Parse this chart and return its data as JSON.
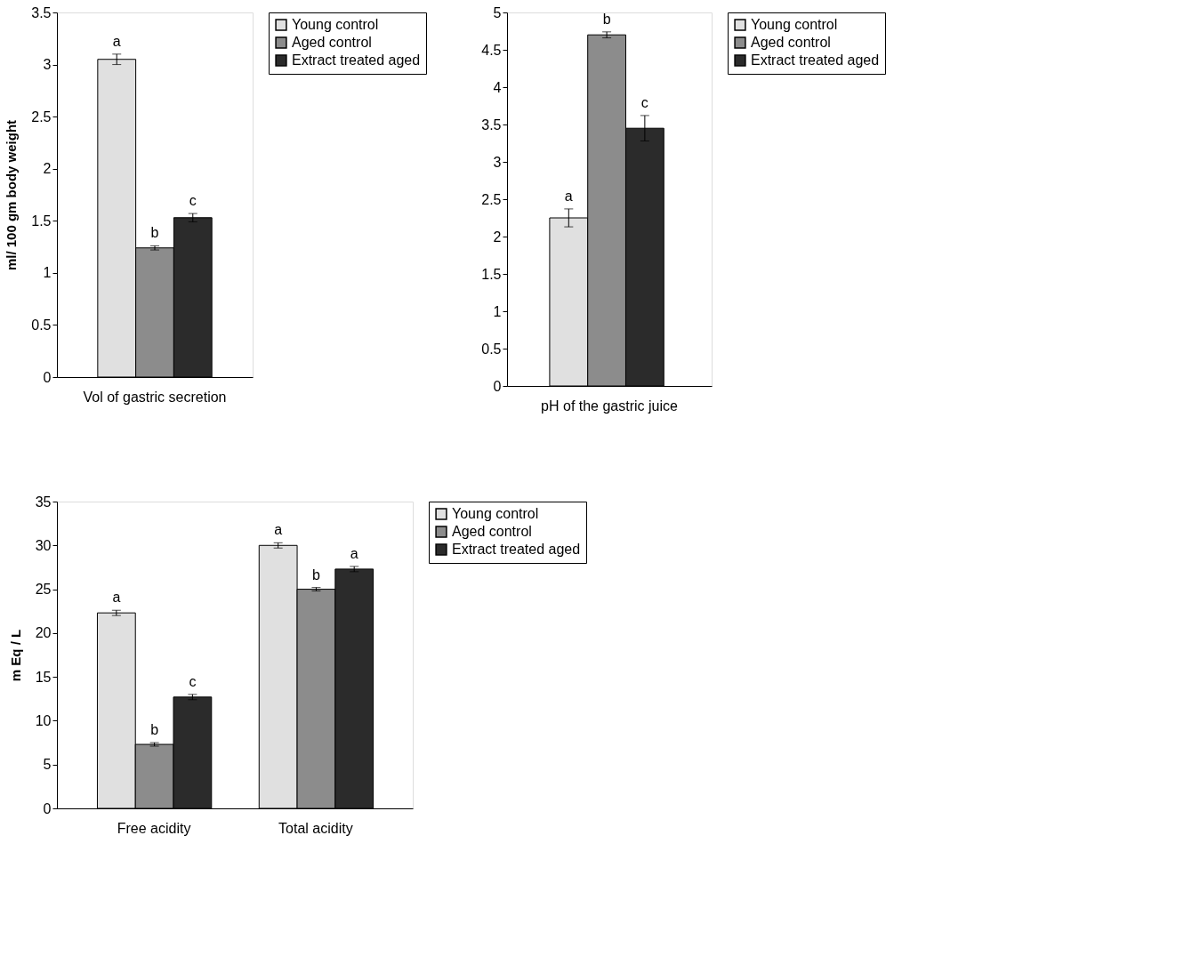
{
  "chart_data": [
    {
      "type": "bar",
      "ylabel": "ml/ 100 gm body weight",
      "categories": [
        "Vol of gastric secretion"
      ],
      "ylim": [
        0,
        3.5
      ],
      "yticks": [
        0,
        0.5,
        1,
        1.5,
        2,
        2.5,
        3,
        3.5
      ],
      "grid": false,
      "legend": "right",
      "series": [
        {
          "name": "Young control",
          "color": "#e0e0e0",
          "values": [
            3.05
          ],
          "errors": [
            0.05
          ],
          "value_labels": [
            "a"
          ]
        },
        {
          "name": "Aged control",
          "color": "#8c8c8c",
          "values": [
            1.24
          ],
          "errors": [
            0.02
          ],
          "value_labels": [
            "b"
          ]
        },
        {
          "name": "Extract treated aged",
          "color": "#2b2b2b",
          "values": [
            1.53
          ],
          "errors": [
            0.04
          ],
          "value_labels": [
            "c"
          ]
        }
      ]
    },
    {
      "type": "bar",
      "categories": [
        "pH of the gastric juice"
      ],
      "ylim": [
        0,
        5
      ],
      "yticks": [
        0,
        0.5,
        1,
        1.5,
        2,
        2.5,
        3,
        3.5,
        4,
        4.5,
        5
      ],
      "grid": false,
      "legend": "right",
      "series": [
        {
          "name": "Young control",
          "color": "#e0e0e0",
          "values": [
            2.25
          ],
          "errors": [
            0.12
          ],
          "value_labels": [
            "a"
          ]
        },
        {
          "name": "Aged control",
          "color": "#8c8c8c",
          "values": [
            4.7
          ],
          "errors": [
            0.04
          ],
          "value_labels": [
            "b"
          ]
        },
        {
          "name": "Extract treated aged",
          "color": "#2b2b2b",
          "values": [
            3.45
          ],
          "errors": [
            0.17
          ],
          "value_labels": [
            "c"
          ]
        }
      ]
    },
    {
      "type": "bar",
      "ylabel": "m Eq / L",
      "categories": [
        "Free acidity",
        "Total acidity"
      ],
      "ylim": [
        0,
        35
      ],
      "yticks": [
        0,
        5,
        10,
        15,
        20,
        25,
        30,
        35
      ],
      "grid": false,
      "legend": "right",
      "series": [
        {
          "name": "Young control",
          "color": "#e0e0e0",
          "values": [
            22.3,
            30.0
          ],
          "errors": [
            0.3,
            0.3
          ],
          "value_labels": [
            "a",
            "a"
          ]
        },
        {
          "name": "Aged control",
          "color": "#8c8c8c",
          "values": [
            7.3,
            25.0
          ],
          "errors": [
            0.2,
            0.2
          ],
          "value_labels": [
            "b",
            "b"
          ]
        },
        {
          "name": "Extract treated aged",
          "color": "#2b2b2b",
          "values": [
            12.7,
            27.3
          ],
          "errors": [
            0.3,
            0.3
          ],
          "value_labels": [
            "c",
            "a"
          ]
        }
      ]
    }
  ]
}
